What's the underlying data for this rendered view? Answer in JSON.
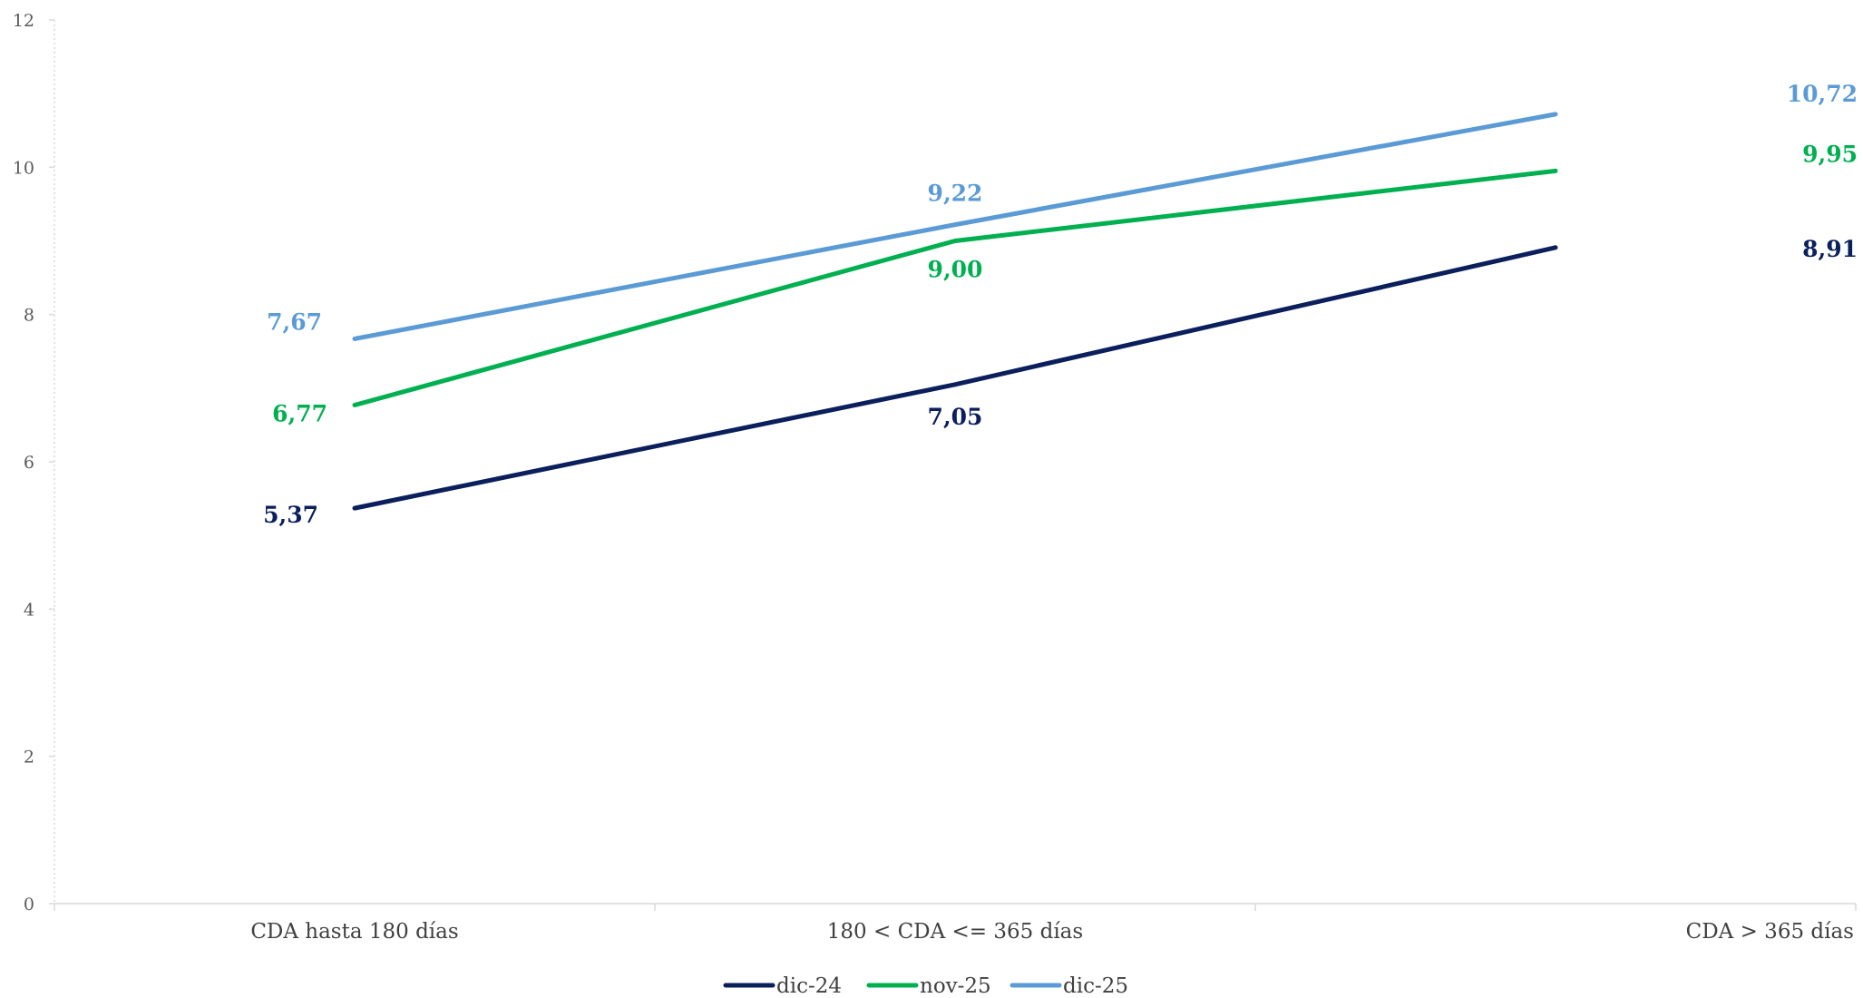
{
  "chart_data": {
    "type": "line",
    "title": "",
    "xlabel": "",
    "ylabel": "",
    "categories": [
      "CDA hasta 180 días",
      "180 < CDA <= 365 días",
      "CDA > 365 días"
    ],
    "ylim": [
      0,
      12
    ],
    "yticks": [
      0,
      2,
      4,
      6,
      8,
      10,
      12
    ],
    "grid": false,
    "legend_position": "bottom",
    "series": [
      {
        "name": "dic-24",
        "color": "#0a1f5c",
        "values": [
          5.37,
          7.05,
          8.91
        ],
        "labels": [
          "5,37",
          "7,05",
          "8,91"
        ]
      },
      {
        "name": "nov-25",
        "color": "#00b050",
        "values": [
          6.77,
          9.0,
          9.95
        ],
        "labels": [
          "6,77",
          "9,00",
          "9,95"
        ]
      },
      {
        "name": "dic-25",
        "color": "#5b9bd5",
        "values": [
          7.67,
          9.22,
          10.72
        ],
        "labels": [
          "7,67",
          "9,22",
          "10,72"
        ]
      }
    ]
  }
}
